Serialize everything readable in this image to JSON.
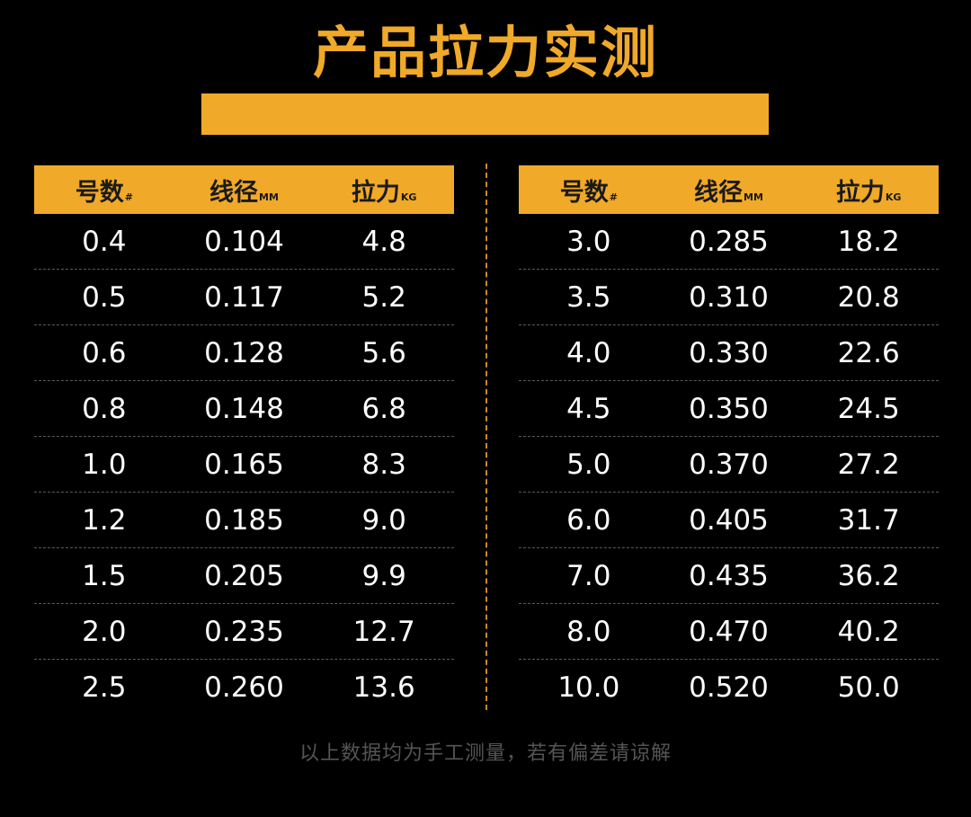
{
  "title": "产品拉力实测",
  "colors": {
    "accent": "#f0a928",
    "background": "#000000",
    "text": "#ffffff",
    "footnote": "#555555"
  },
  "headers": {
    "size": "号数",
    "size_unit": "#",
    "diameter": "线径",
    "diameter_unit": "MM",
    "tension": "拉力",
    "tension_unit": "KG"
  },
  "left_rows": [
    {
      "size": "0.4",
      "diameter": "0.104",
      "tension": "4.8"
    },
    {
      "size": "0.5",
      "diameter": "0.117",
      "tension": "5.2"
    },
    {
      "size": "0.6",
      "diameter": "0.128",
      "tension": "5.6"
    },
    {
      "size": "0.8",
      "diameter": "0.148",
      "tension": "6.8"
    },
    {
      "size": "1.0",
      "diameter": "0.165",
      "tension": "8.3"
    },
    {
      "size": "1.2",
      "diameter": "0.185",
      "tension": "9.0"
    },
    {
      "size": "1.5",
      "diameter": "0.205",
      "tension": "9.9"
    },
    {
      "size": "2.0",
      "diameter": "0.235",
      "tension": "12.7"
    },
    {
      "size": "2.5",
      "diameter": "0.260",
      "tension": "13.6"
    }
  ],
  "right_rows": [
    {
      "size": "3.0",
      "diameter": "0.285",
      "tension": "18.2"
    },
    {
      "size": "3.5",
      "diameter": "0.310",
      "tension": "20.8"
    },
    {
      "size": "4.0",
      "diameter": "0.330",
      "tension": "22.6"
    },
    {
      "size": "4.5",
      "diameter": "0.350",
      "tension": "24.5"
    },
    {
      "size": "5.0",
      "diameter": "0.370",
      "tension": "27.2"
    },
    {
      "size": "6.0",
      "diameter": "0.405",
      "tension": "31.7"
    },
    {
      "size": "7.0",
      "diameter": "0.435",
      "tension": "36.2"
    },
    {
      "size": "8.0",
      "diameter": "0.470",
      "tension": "40.2"
    },
    {
      "size": "10.0",
      "diameter": "0.520",
      "tension": "50.0"
    }
  ],
  "footnote": "以上数据均为手工测量，若有偏差请谅解"
}
